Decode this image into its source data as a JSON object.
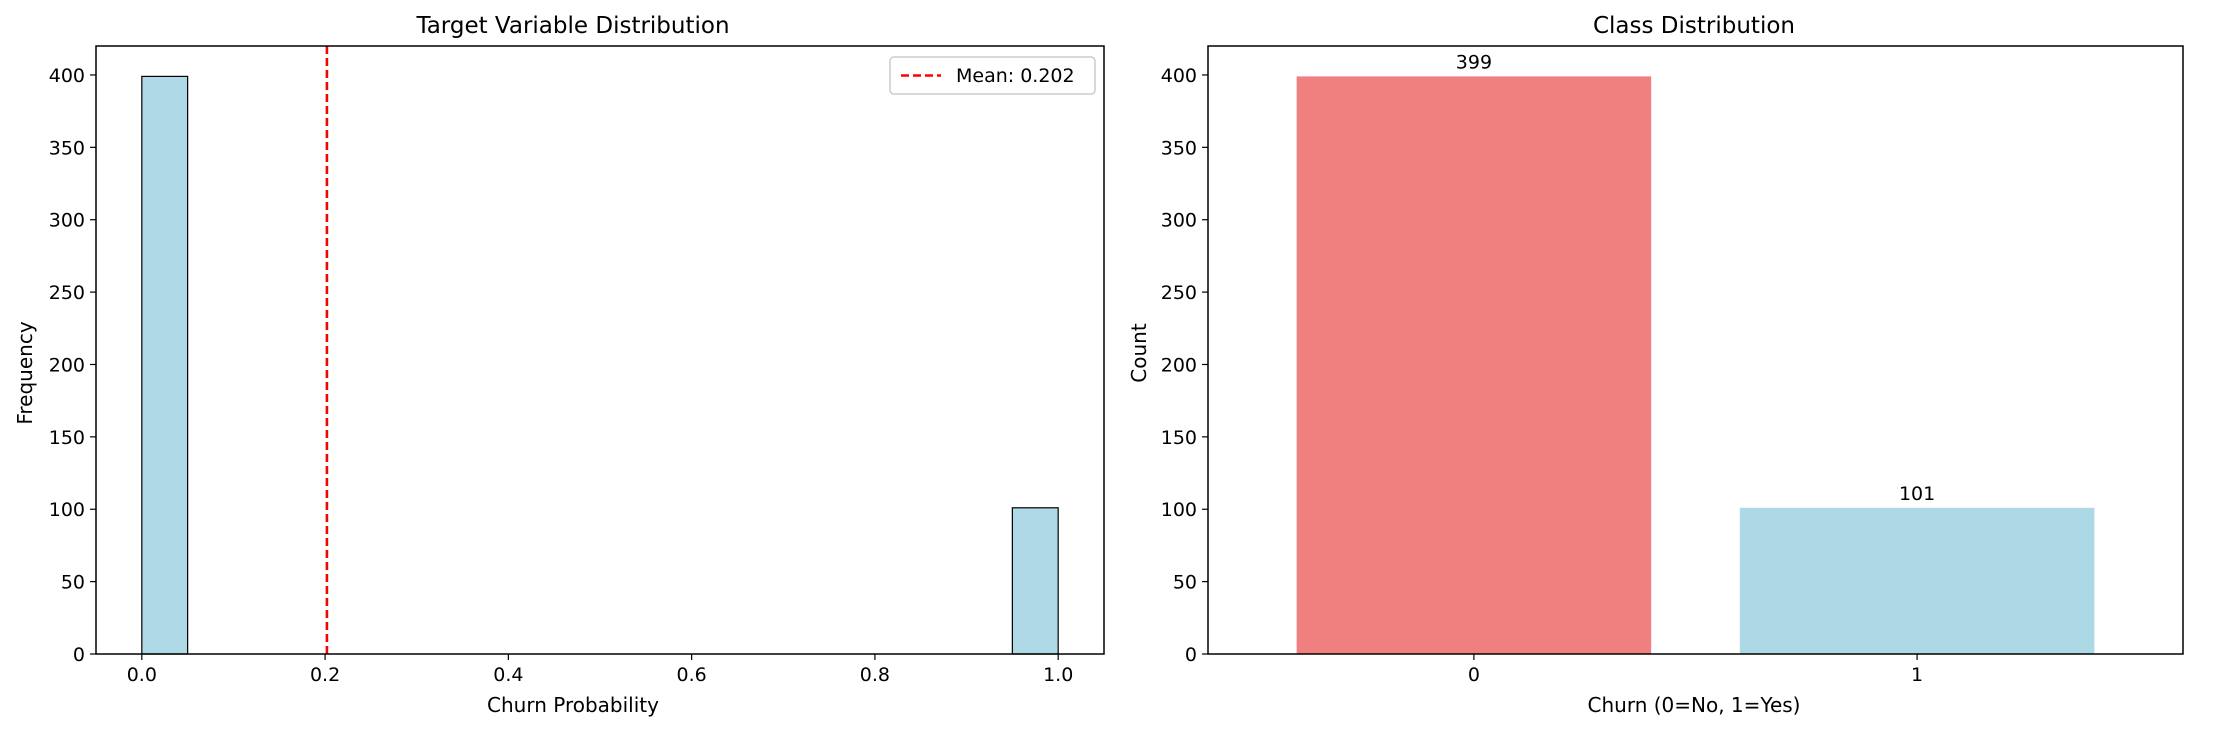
{
  "chart_data": [
    {
      "type": "bar",
      "title": "Target Variable Distribution",
      "xlabel": "Churn Probability",
      "ylabel": "Frequency",
      "xlim": [
        -0.05,
        1.05
      ],
      "ylim": [
        0,
        420
      ],
      "xticks": [
        0.0,
        0.2,
        0.4,
        0.6,
        0.8,
        1.0
      ],
      "xtick_labels": [
        "0.0",
        "0.2",
        "0.4",
        "0.6",
        "0.8",
        "1.0"
      ],
      "yticks": [
        0,
        50,
        100,
        150,
        200,
        250,
        300,
        350,
        400
      ],
      "bins": [
        {
          "x0": 0.0,
          "x1": 0.05,
          "value": 399
        },
        {
          "x0": 0.95,
          "x1": 1.0,
          "value": 101
        }
      ],
      "bar_color": "#add8e6",
      "edge_color": "#000000",
      "mean_line": {
        "value": 0.202,
        "label": "Mean: 0.202",
        "color": "#ff0000",
        "style": "dashed"
      },
      "legend": {
        "placement": "top-right",
        "entries": [
          "Mean: 0.202"
        ]
      },
      "grid": false
    },
    {
      "type": "bar",
      "title": "Class Distribution",
      "xlabel": "Churn (0=No, 1=Yes)",
      "ylabel": "Count",
      "categories": [
        "0",
        "1"
      ],
      "values": [
        399,
        101
      ],
      "data_labels": [
        "399",
        "101"
      ],
      "colors": [
        "#f08080",
        "#add8e6"
      ],
      "ylim": [
        0,
        420
      ],
      "yticks": [
        0,
        50,
        100,
        150,
        200,
        250,
        300,
        350,
        400
      ],
      "grid": false
    }
  ]
}
